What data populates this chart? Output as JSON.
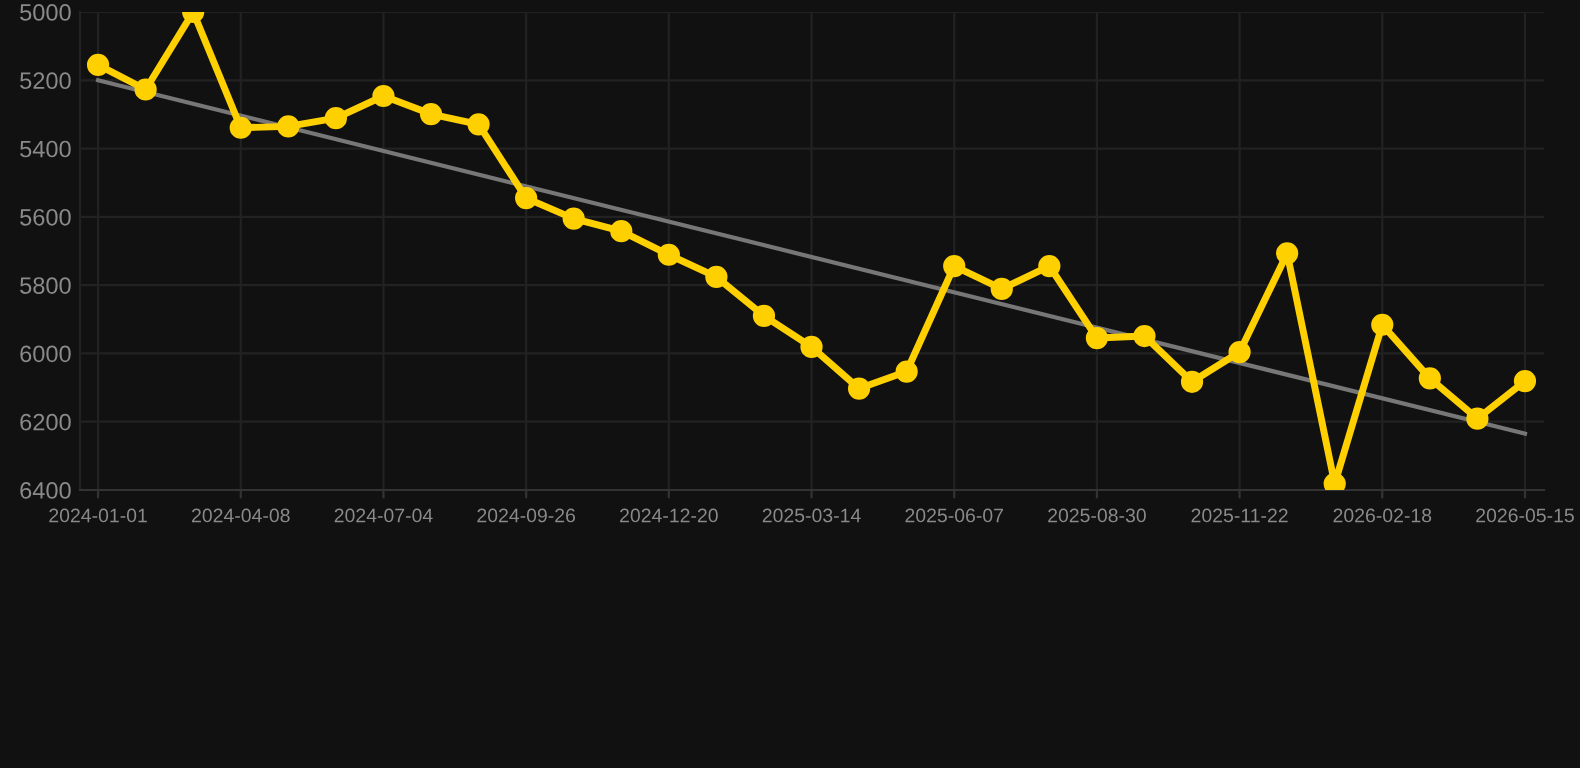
{
  "chart_data": {
    "type": "line",
    "categories": [
      "2024-01-01",
      null,
      null,
      "2024-04-08",
      null,
      null,
      "2024-07-04",
      null,
      null,
      "2024-09-26",
      null,
      null,
      "2024-12-20",
      null,
      null,
      "2025-03-14",
      null,
      null,
      "2025-06-07",
      null,
      null,
      "2025-08-30",
      null,
      null,
      "2025-11-22",
      null,
      null,
      "2026-02-18",
      null,
      null,
      "2026-05-15"
    ],
    "series": [
      {
        "color": "#ffd000",
        "marker": "circle",
        "values": [
          5155,
          5227,
          5000,
          5339,
          5335,
          5311,
          5246,
          5299,
          5329,
          5545,
          5605,
          5642,
          5711,
          5776,
          5890,
          5981,
          6103,
          6053,
          5744,
          5811,
          5744,
          5955,
          5949,
          6083,
          5996,
          5707,
          6382,
          5916,
          6073,
          6191,
          6081
        ]
      },
      {
        "color": "#777777",
        "marker": "none",
        "values": [
          5200,
          null,
          null,
          null,
          null,
          null,
          null,
          null,
          null,
          null,
          null,
          null,
          null,
          null,
          null,
          null,
          null,
          null,
          null,
          null,
          null,
          null,
          null,
          null,
          null,
          null,
          null,
          null,
          null,
          null,
          6235
        ]
      }
    ],
    "ylim": [
      6400,
      5000
    ],
    "yticks": [
      5000,
      5200,
      5400,
      5600,
      5800,
      6000,
      6200,
      6400
    ],
    "grid": true,
    "line_style": "solid"
  }
}
